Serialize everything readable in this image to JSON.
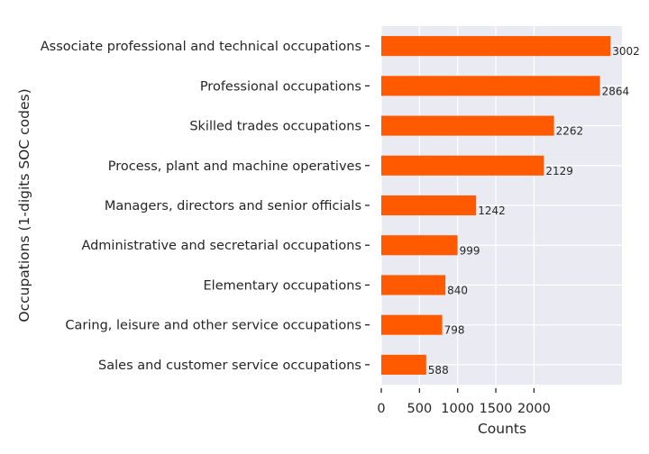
{
  "chart_data": {
    "type": "bar",
    "orientation": "horizontal",
    "title": "",
    "xlabel": "Counts",
    "ylabel": "Occupations (1-digits SOC codes)",
    "categories": [
      "Associate professional and technical occupations",
      "Professional occupations",
      "Skilled trades occupations",
      "Process, plant and machine operatives",
      "Managers, directors and senior officials",
      "Administrative and secretarial occupations",
      "Elementary occupations",
      "Caring, leisure and other service occupations",
      "Sales and customer service occupations"
    ],
    "values": [
      3002,
      2864,
      2262,
      2129,
      1242,
      999,
      840,
      798,
      588
    ],
    "value_labels": [
      "3002",
      "2864",
      "2262",
      "2129",
      "1242",
      "999",
      "840",
      "798",
      "588"
    ],
    "xticks": [
      0,
      500,
      1000,
      1500,
      2000
    ],
    "xtick_labels": [
      "0",
      "500",
      "1000",
      "1500",
      "2000"
    ],
    "xlim": [
      0,
      3152
    ],
    "grid": true,
    "colors": {
      "bar": "#ff5a00",
      "plot_background": "#eaeaf2",
      "grid": "#ffffff"
    }
  }
}
